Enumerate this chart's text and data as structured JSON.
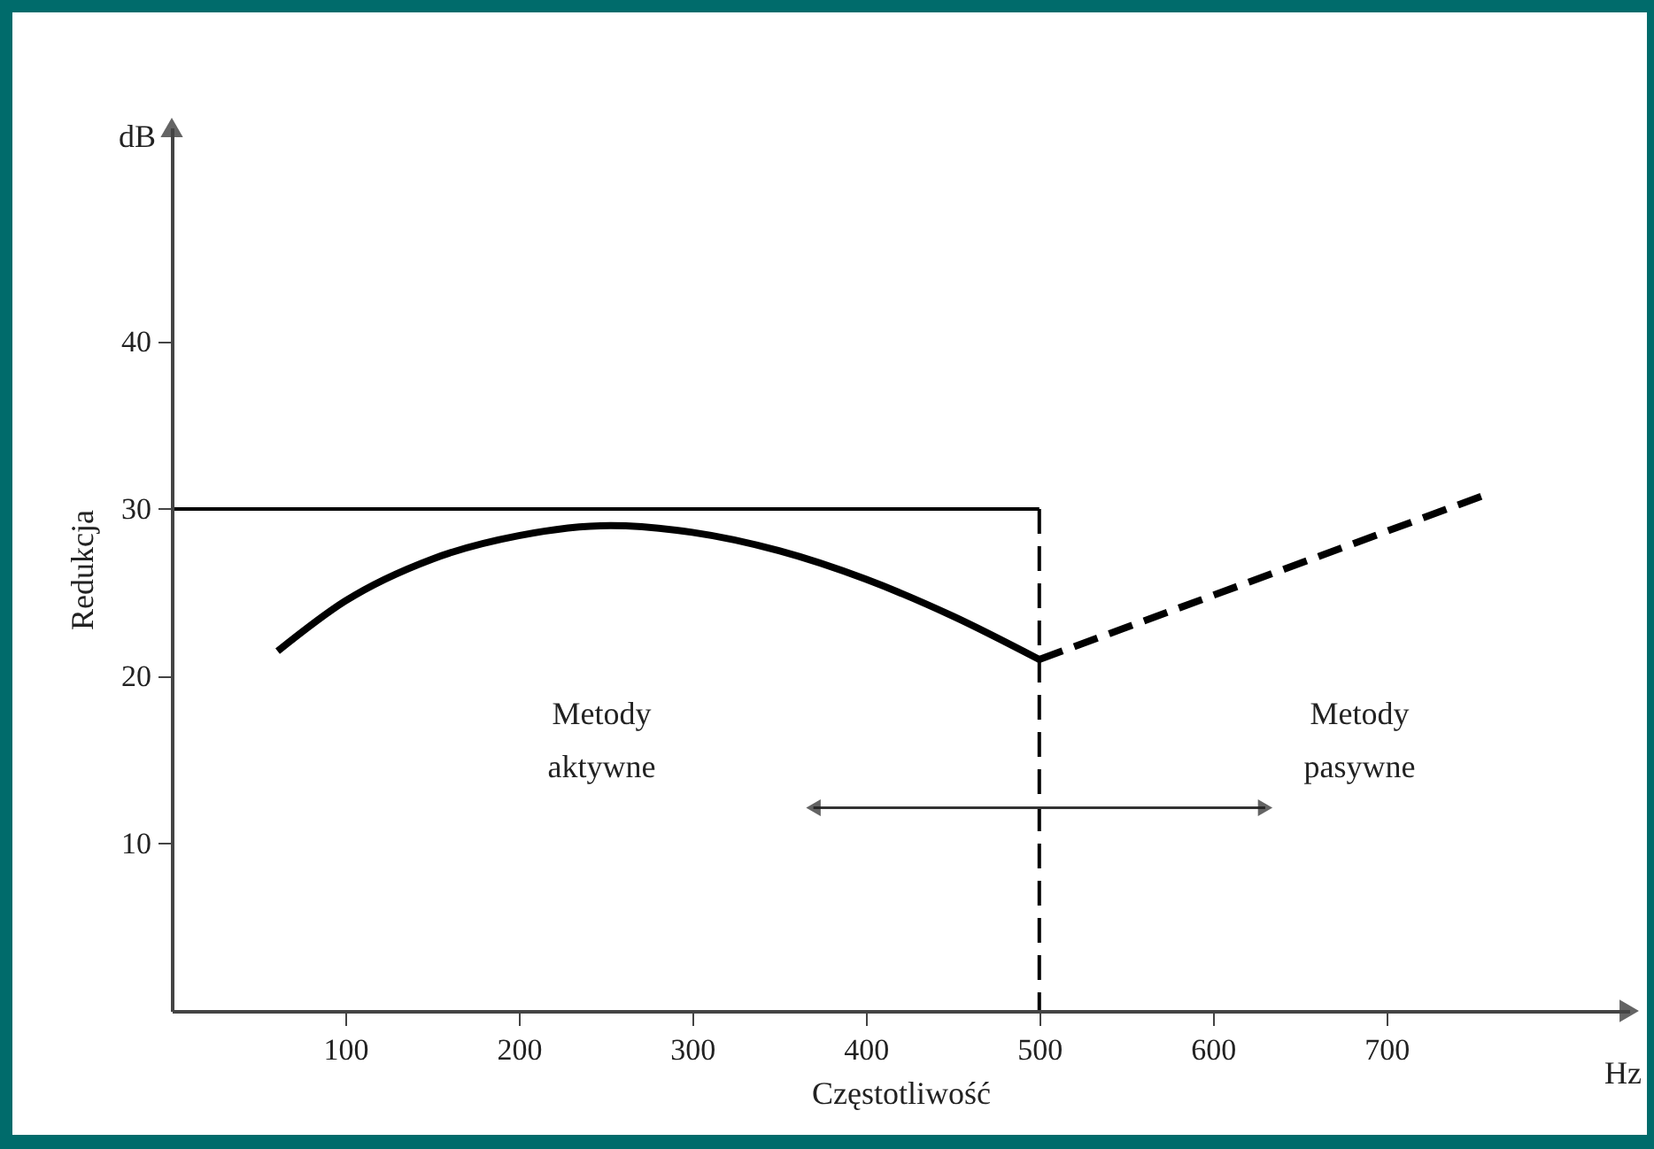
{
  "chart_data": {
    "type": "line",
    "xlabel": "Częstotliwość",
    "ylabel": "Redukcja",
    "xlim": [
      0,
      840
    ],
    "ylim": [
      0,
      52.8
    ],
    "xticks": [
      100,
      200,
      300,
      400,
      500,
      600,
      700
    ],
    "yticks": [
      10,
      20,
      30,
      40
    ],
    "grid": false,
    "marker": "none",
    "series": [
      {
        "color": "#000000",
        "line_style": "solid",
        "x": [
          0,
          500
        ],
        "values": [
          30,
          30
        ]
      },
      {
        "color": "#000000",
        "line_style": "dashed",
        "x": [
          500,
          500
        ],
        "values": [
          30,
          0
        ]
      },
      {
        "color": "#000000",
        "line_style": "solid",
        "x": [
          61,
          100,
          150,
          200,
          253,
          300,
          350,
          400,
          450,
          500
        ],
        "values": [
          21.5,
          24.5,
          27,
          28.4,
          29,
          28.6,
          27.5,
          25.8,
          23.6,
          21
        ]
      },
      {
        "color": "#000000",
        "line_style": "dashed",
        "x": [
          500,
          756
        ],
        "values": [
          21,
          30.8
        ]
      }
    ],
    "annotations": [
      "dB",
      "Hz",
      "Metody aktywne",
      "Metody pasywne"
    ]
  }
}
